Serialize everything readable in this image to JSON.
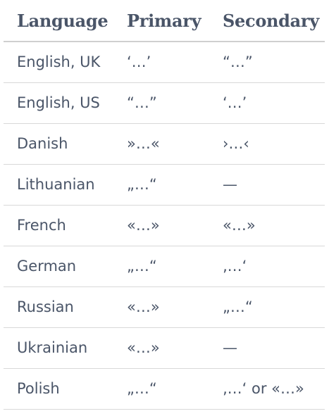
{
  "table": {
    "headers": [
      "Language",
      "Primary",
      "Secondary"
    ],
    "rows": [
      {
        "language": "English, UK",
        "primary": "‘…’",
        "secondary": "“…”"
      },
      {
        "language": "English, US",
        "primary": "“…”",
        "secondary": "‘…’"
      },
      {
        "language": "Danish",
        "primary": "»…«",
        "secondary": "›…‹"
      },
      {
        "language": "Lithuanian",
        "primary": "„…“",
        "secondary": "—"
      },
      {
        "language": "French",
        "primary": "«…»",
        "secondary": "«…»"
      },
      {
        "language": "German",
        "primary": "„…“",
        "secondary": "‚…‘"
      },
      {
        "language": "Russian",
        "primary": "«…»",
        "secondary": "„…“"
      },
      {
        "language": "Ukrainian",
        "primary": "«…»",
        "secondary": "—"
      },
      {
        "language": "Polish",
        "primary": "„…“",
        "secondary": "‚…‘ or «…»"
      }
    ]
  }
}
